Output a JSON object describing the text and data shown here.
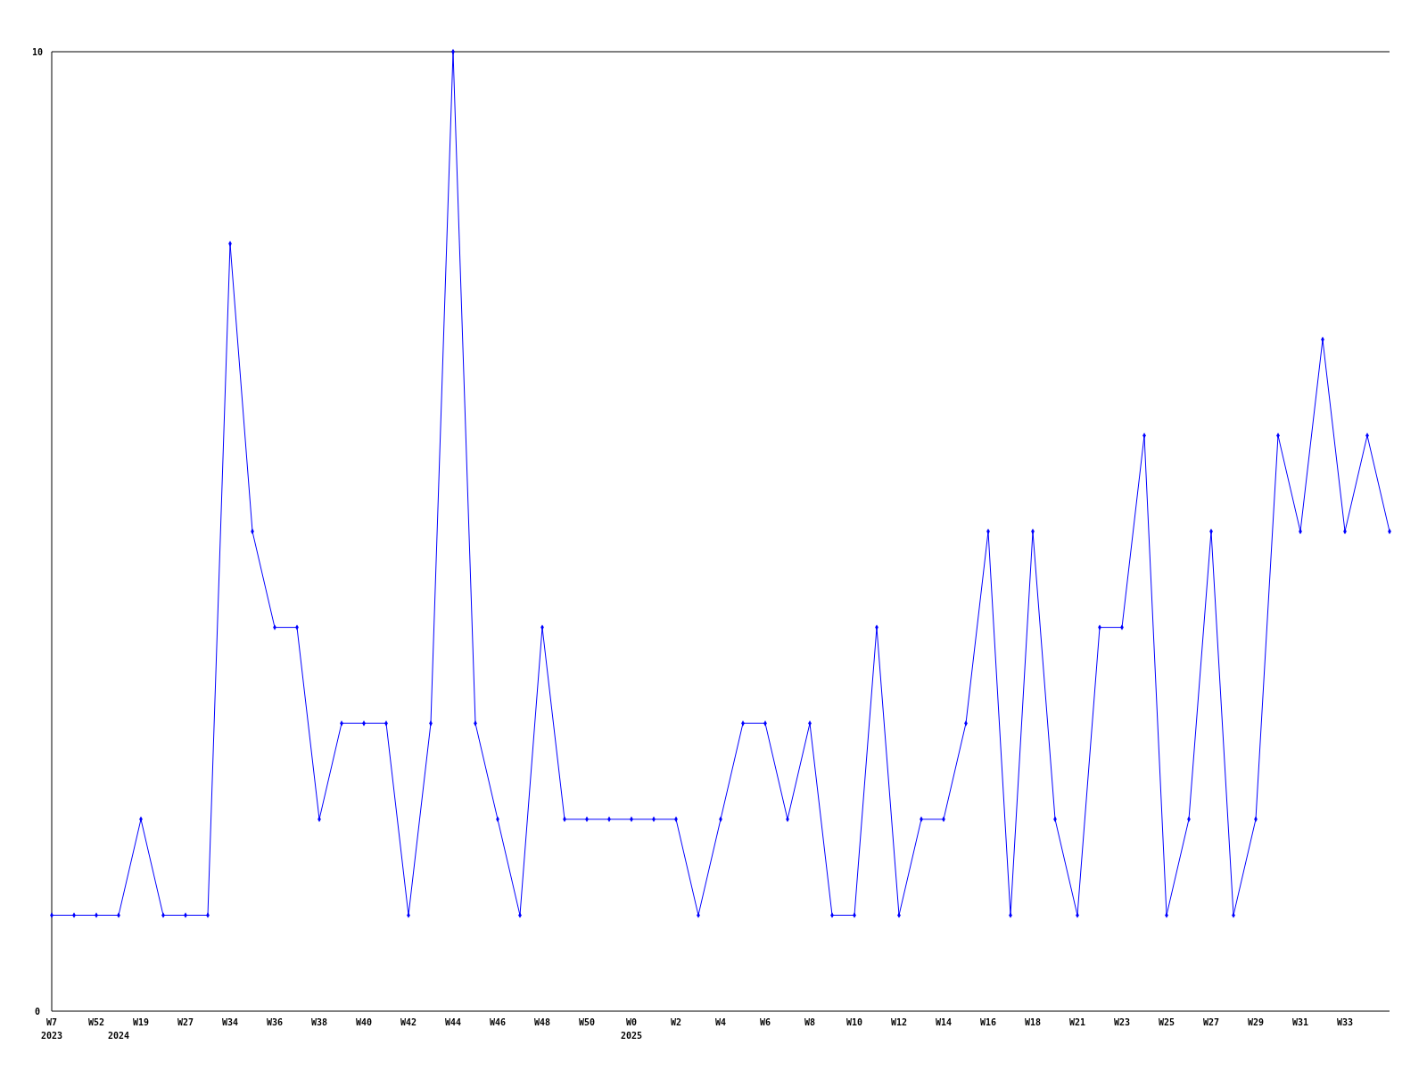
{
  "chart_data": {
    "type": "line",
    "categories": [
      "W7\n2023",
      null,
      "W52",
      "\n2024",
      "W19",
      null,
      "W27",
      null,
      "W34",
      null,
      "W36",
      null,
      "W38",
      null,
      "W40",
      null,
      "W42",
      null,
      "W44",
      null,
      "W46",
      null,
      "W48",
      null,
      "W50",
      null,
      "W0\n2025",
      null,
      "W2",
      null,
      "W4",
      null,
      "W6",
      null,
      "W8",
      null,
      "W10",
      null,
      "W12",
      null,
      "W14",
      null,
      "W16",
      null,
      "W18",
      null,
      "W21",
      null,
      "W23",
      null,
      "W25",
      null,
      "W27",
      null,
      "W29",
      null,
      "W31",
      null,
      "W33",
      null,
      null
    ],
    "series": [
      {
        "color": "#0000ff",
        "values": [
          1,
          1,
          1,
          1,
          2,
          1,
          1,
          1,
          8,
          5,
          4,
          4,
          2,
          3,
          3,
          3,
          1,
          3,
          10,
          3,
          2,
          1,
          4,
          2,
          2,
          2,
          2,
          2,
          2,
          1,
          2,
          3,
          3,
          2,
          3,
          1,
          1,
          4,
          1,
          2,
          2,
          3,
          5,
          1,
          5,
          2,
          1,
          4,
          4,
          6,
          1,
          2,
          5,
          1,
          2,
          6,
          5,
          7,
          5,
          6,
          5
        ]
      }
    ],
    "ylim": [
      0,
      10
    ],
    "yticks": [
      0,
      10
    ],
    "marker": "diamond",
    "line_style": "solid"
  }
}
